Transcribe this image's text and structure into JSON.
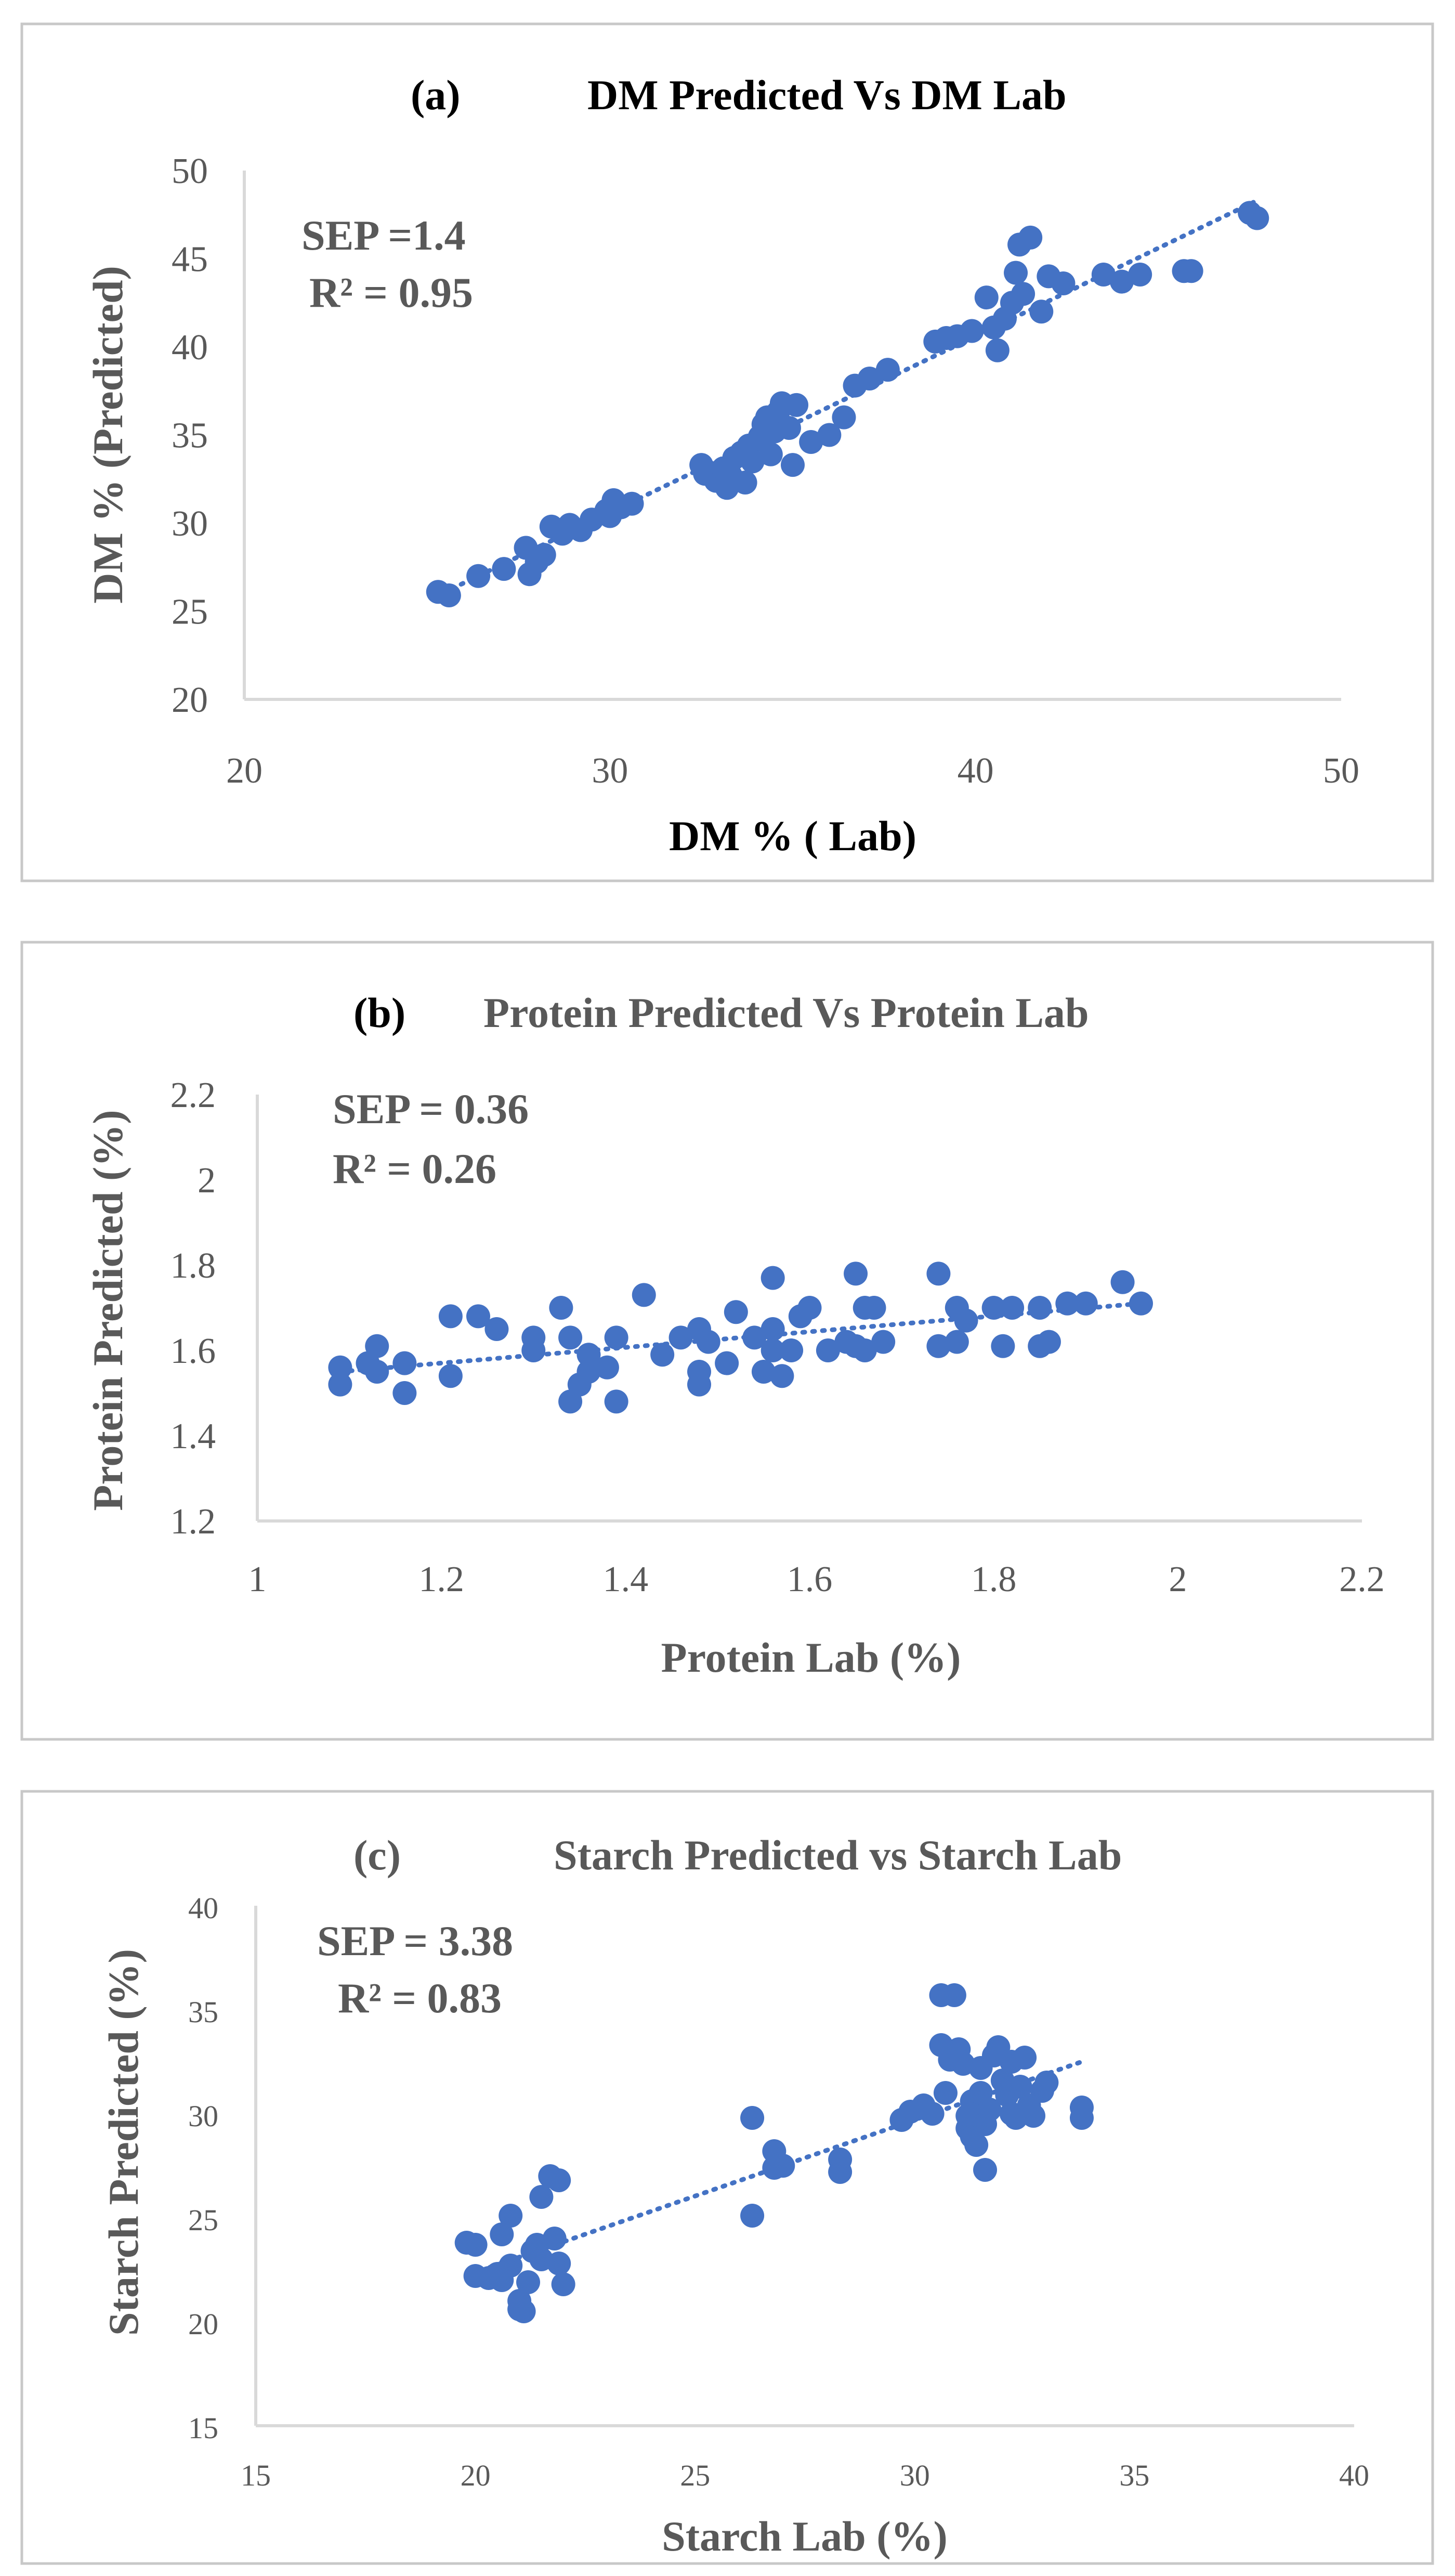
{
  "chart_data": [
    {
      "type": "scatter",
      "panel_label": "(a)",
      "title": "DM Predicted Vs DM Lab",
      "xlabel": "DM % ( Lab)",
      "ylabel": "DM %  (Predicted)",
      "xlim": [
        20,
        50
      ],
      "ylim": [
        20,
        50
      ],
      "xticks": [
        "20",
        "30",
        "40",
        "50"
      ],
      "yticks": [
        "20",
        "25",
        "30",
        "35",
        "40",
        "45",
        "50"
      ],
      "stats": [
        "SEP =1.4",
        "R² = 0.95"
      ],
      "trendline": {
        "x1": 25.2,
        "y1": 25.8,
        "x2": 47.6,
        "y2": 48.2
      },
      "points": [
        [
          25.3,
          26.1
        ],
        [
          25.6,
          25.9
        ],
        [
          26.4,
          27.0
        ],
        [
          27.1,
          27.4
        ],
        [
          27.7,
          28.6
        ],
        [
          27.8,
          27.1
        ],
        [
          28.0,
          27.8
        ],
        [
          28.2,
          28.2
        ],
        [
          28.4,
          29.8
        ],
        [
          28.7,
          29.4
        ],
        [
          28.9,
          29.9
        ],
        [
          29.2,
          29.6
        ],
        [
          29.5,
          30.2
        ],
        [
          29.9,
          30.7
        ],
        [
          30.1,
          31.3
        ],
        [
          30.3,
          30.9
        ],
        [
          30.6,
          31.1
        ],
        [
          30.0,
          30.4
        ],
        [
          32.5,
          33.3
        ],
        [
          32.6,
          32.8
        ],
        [
          32.9,
          32.4
        ],
        [
          33.1,
          33.1
        ],
        [
          33.3,
          32.7
        ],
        [
          33.4,
          33.7
        ],
        [
          33.6,
          34.0
        ],
        [
          33.8,
          34.4
        ],
        [
          33.9,
          33.5
        ],
        [
          34.1,
          34.9
        ],
        [
          34.2,
          35.6
        ],
        [
          34.3,
          36.0
        ],
        [
          34.4,
          33.9
        ],
        [
          34.5,
          35.2
        ],
        [
          34.6,
          36.3
        ],
        [
          34.7,
          36.8
        ],
        [
          34.9,
          35.4
        ],
        [
          35.1,
          36.7
        ],
        [
          33.2,
          32.0
        ],
        [
          33.7,
          32.3
        ],
        [
          35.0,
          33.3
        ],
        [
          35.5,
          34.6
        ],
        [
          36.0,
          35.0
        ],
        [
          36.4,
          36.0
        ],
        [
          36.7,
          37.8
        ],
        [
          37.1,
          38.2
        ],
        [
          37.6,
          38.7
        ],
        [
          38.9,
          40.3
        ],
        [
          39.2,
          40.5
        ],
        [
          39.5,
          40.6
        ],
        [
          39.9,
          40.9
        ],
        [
          40.3,
          42.8
        ],
        [
          40.5,
          41.1
        ],
        [
          40.6,
          39.8
        ],
        [
          40.8,
          41.6
        ],
        [
          41.1,
          44.2
        ],
        [
          41.2,
          45.8
        ],
        [
          41.5,
          46.2
        ],
        [
          41.0,
          42.5
        ],
        [
          41.3,
          43.0
        ],
        [
          41.8,
          42.0
        ],
        [
          42.0,
          44.0
        ],
        [
          42.4,
          43.6
        ],
        [
          43.5,
          44.1
        ],
        [
          44.0,
          43.7
        ],
        [
          44.5,
          44.1
        ],
        [
          45.7,
          44.3
        ],
        [
          45.9,
          44.3
        ],
        [
          47.5,
          47.6
        ],
        [
          47.7,
          47.3
        ]
      ]
    },
    {
      "type": "scatter",
      "panel_label": "(b)",
      "title": "Protein Predicted Vs Protein Lab",
      "xlabel": "Protein Lab (%)",
      "ylabel": "Protein Predicted (%)",
      "xlim": [
        1.0,
        2.2
      ],
      "ylim": [
        1.2,
        2.2
      ],
      "xticks": [
        "1",
        "1.2",
        "1.4",
        "1.6",
        "1.8",
        "2",
        "2.2"
      ],
      "yticks": [
        "1.2",
        "1.4",
        "1.6",
        "1.8",
        "2",
        "2.2"
      ],
      "stats": [
        "SEP = 0.36",
        "R² = 0.26"
      ],
      "trendline": {
        "x1": 1.09,
        "y1": 1.55,
        "x2": 1.96,
        "y2": 1.71
      },
      "points": [
        [
          1.09,
          1.56
        ],
        [
          1.09,
          1.52
        ],
        [
          1.12,
          1.57
        ],
        [
          1.13,
          1.61
        ],
        [
          1.13,
          1.55
        ],
        [
          1.16,
          1.57
        ],
        [
          1.16,
          1.5
        ],
        [
          1.21,
          1.68
        ],
        [
          1.21,
          1.54
        ],
        [
          1.24,
          1.68
        ],
        [
          1.26,
          1.65
        ],
        [
          1.3,
          1.63
        ],
        [
          1.3,
          1.6
        ],
        [
          1.33,
          1.7
        ],
        [
          1.34,
          1.63
        ],
        [
          1.34,
          1.48
        ],
        [
          1.35,
          1.52
        ],
        [
          1.36,
          1.55
        ],
        [
          1.36,
          1.59
        ],
        [
          1.38,
          1.56
        ],
        [
          1.39,
          1.63
        ],
        [
          1.39,
          1.48
        ],
        [
          1.42,
          1.73
        ],
        [
          1.44,
          1.59
        ],
        [
          1.46,
          1.63
        ],
        [
          1.48,
          1.65
        ],
        [
          1.48,
          1.55
        ],
        [
          1.48,
          1.52
        ],
        [
          1.49,
          1.62
        ],
        [
          1.51,
          1.57
        ],
        [
          1.52,
          1.69
        ],
        [
          1.54,
          1.63
        ],
        [
          1.55,
          1.55
        ],
        [
          1.56,
          1.65
        ],
        [
          1.56,
          1.77
        ],
        [
          1.56,
          1.6
        ],
        [
          1.57,
          1.54
        ],
        [
          1.58,
          1.6
        ],
        [
          1.59,
          1.68
        ],
        [
          1.6,
          1.7
        ],
        [
          1.62,
          1.6
        ],
        [
          1.64,
          1.62
        ],
        [
          1.65,
          1.78
        ],
        [
          1.65,
          1.61
        ],
        [
          1.66,
          1.7
        ],
        [
          1.67,
          1.7
        ],
        [
          1.66,
          1.6
        ],
        [
          1.68,
          1.62
        ],
        [
          1.74,
          1.78
        ],
        [
          1.74,
          1.61
        ],
        [
          1.76,
          1.7
        ],
        [
          1.76,
          1.62
        ],
        [
          1.77,
          1.67
        ],
        [
          1.8,
          1.7
        ],
        [
          1.81,
          1.61
        ],
        [
          1.82,
          1.7
        ],
        [
          1.85,
          1.7
        ],
        [
          1.85,
          1.61
        ],
        [
          1.86,
          1.62
        ],
        [
          1.88,
          1.71
        ],
        [
          1.9,
          1.71
        ],
        [
          1.94,
          1.76
        ],
        [
          1.96,
          1.71
        ]
      ]
    },
    {
      "type": "scatter",
      "panel_label": "(c)",
      "title": "Starch Predicted vs Starch Lab",
      "xlabel": "Starch Lab (%)",
      "ylabel": "Starch Predicted (%)",
      "xlim": [
        15,
        40
      ],
      "ylim": [
        15,
        40
      ],
      "xticks": [
        "15",
        "20",
        "25",
        "30",
        "35",
        "40"
      ],
      "yticks": [
        "15",
        "20",
        "25",
        "30",
        "35",
        "40"
      ],
      "stats": [
        "SEP = 3.38",
        "R² = 0.83"
      ],
      "trendline": {
        "x1": 19.9,
        "y1": 22.3,
        "x2": 33.8,
        "y2": 32.5
      },
      "points": [
        [
          19.8,
          23.8
        ],
        [
          20.0,
          23.7
        ],
        [
          20.0,
          22.2
        ],
        [
          20.3,
          22.1
        ],
        [
          20.5,
          22.3
        ],
        [
          20.6,
          24.2
        ],
        [
          20.6,
          22.0
        ],
        [
          20.8,
          25.1
        ],
        [
          20.8,
          22.7
        ],
        [
          21.0,
          21.0
        ],
        [
          21.0,
          20.6
        ],
        [
          21.1,
          20.5
        ],
        [
          21.2,
          21.9
        ],
        [
          21.3,
          23.4
        ],
        [
          21.4,
          23.7
        ],
        [
          21.5,
          26.0
        ],
        [
          21.5,
          23.0
        ],
        [
          21.7,
          27.0
        ],
        [
          21.8,
          24.0
        ],
        [
          21.9,
          26.8
        ],
        [
          21.9,
          22.8
        ],
        [
          22.0,
          21.8
        ],
        [
          26.3,
          29.8
        ],
        [
          26.3,
          25.1
        ],
        [
          26.8,
          28.2
        ],
        [
          26.8,
          27.4
        ],
        [
          27.0,
          27.5
        ],
        [
          28.3,
          27.8
        ],
        [
          28.3,
          27.2
        ],
        [
          29.7,
          29.7
        ],
        [
          29.9,
          30.1
        ],
        [
          30.2,
          30.4
        ],
        [
          30.4,
          30.0
        ],
        [
          30.6,
          35.7
        ],
        [
          30.6,
          33.3
        ],
        [
          30.7,
          31.0
        ],
        [
          30.8,
          32.6
        ],
        [
          30.9,
          35.7
        ],
        [
          31.0,
          33.1
        ],
        [
          31.1,
          32.4
        ],
        [
          31.2,
          29.9
        ],
        [
          31.2,
          29.3
        ],
        [
          31.3,
          30.6
        ],
        [
          31.3,
          28.9
        ],
        [
          31.4,
          28.5
        ],
        [
          31.5,
          32.2
        ],
        [
          31.5,
          31.0
        ],
        [
          31.6,
          29.5
        ],
        [
          31.6,
          27.3
        ],
        [
          31.7,
          30.2
        ],
        [
          31.8,
          32.8
        ],
        [
          31.9,
          33.2
        ],
        [
          32.0,
          31.6
        ],
        [
          32.1,
          30.9
        ],
        [
          32.2,
          32.5
        ],
        [
          32.2,
          30.0
        ],
        [
          32.3,
          29.8
        ],
        [
          32.4,
          31.3
        ],
        [
          32.5,
          32.7
        ],
        [
          32.6,
          30.4
        ],
        [
          32.7,
          29.9
        ],
        [
          32.9,
          31.1
        ],
        [
          33.0,
          31.5
        ],
        [
          33.8,
          30.3
        ],
        [
          33.8,
          29.8
        ]
      ]
    }
  ]
}
